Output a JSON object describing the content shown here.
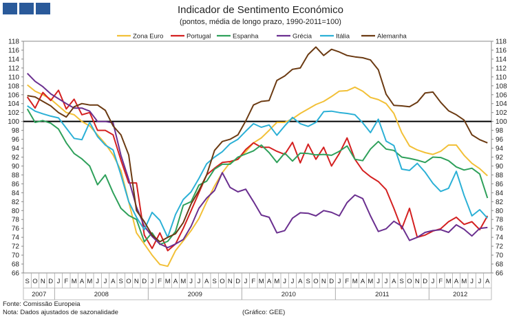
{
  "header": {
    "title": "Indicador de Sentimento Económico",
    "subtitle": "(pontos, média de longo prazo, 1990-2011=100)"
  },
  "footer": {
    "source": "Fonte: Comissão Europeia",
    "note": "Nota: Dados ajustados de sazonalidade",
    "credit": "(Gráfico: GEE)"
  },
  "chart_data": {
    "type": "line",
    "title": "Indicador de Sentimento Económico",
    "ylim": [
      66,
      118
    ],
    "ytick_step": 2,
    "reference_line": 100,
    "months": [
      "S",
      "O",
      "N",
      "D",
      "J",
      "F",
      "M",
      "A",
      "M",
      "J",
      "J",
      "A",
      "S",
      "O",
      "N",
      "D",
      "J",
      "F",
      "M",
      "A",
      "M",
      "J",
      "J",
      "A",
      "S",
      "O",
      "N",
      "D",
      "J",
      "F",
      "M",
      "A",
      "M",
      "J",
      "J",
      "A",
      "S",
      "O",
      "N",
      "D",
      "J",
      "F",
      "M",
      "A",
      "M",
      "J",
      "J",
      "A",
      "S",
      "O",
      "N",
      "D",
      "J",
      "F",
      "M",
      "A",
      "M",
      "J",
      "J",
      "A"
    ],
    "years": [
      {
        "label": "2007",
        "start": 0,
        "count": 4
      },
      {
        "label": "2008",
        "start": 4,
        "count": 12
      },
      {
        "label": "2009",
        "start": 16,
        "count": 12
      },
      {
        "label": "2010",
        "start": 28,
        "count": 12
      },
      {
        "label": "2011",
        "start": 40,
        "count": 12
      },
      {
        "label": "2012",
        "start": 52,
        "count": 8
      }
    ],
    "series": [
      {
        "name": "Zona Euro",
        "color": "#f2c037",
        "values": [
          108.2,
          106.8,
          106.0,
          105.0,
          103.5,
          102.0,
          101.5,
          100.0,
          99.0,
          97.0,
          95.0,
          92.5,
          89.0,
          82.0,
          75.0,
          72.5,
          70.0,
          67.9,
          67.5,
          71.0,
          73.2,
          75.5,
          78.2,
          82.0,
          85.5,
          88.5,
          90.8,
          91.5,
          93.2,
          95.2,
          96.3,
          98.0,
          99.8,
          99.8,
          100.6,
          101.8,
          102.8,
          103.8,
          104.5,
          105.6,
          106.8,
          106.9,
          107.7,
          106.8,
          105.4,
          104.9,
          104.0,
          101.8,
          97.5,
          94.5,
          93.6,
          93.0,
          92.6,
          93.3,
          94.7,
          94.7,
          92.4,
          90.6,
          89.4,
          87.8
        ]
      },
      {
        "name": "Portugal",
        "color": "#d42020",
        "values": [
          105.5,
          103.0,
          106.5,
          104.7,
          107.0,
          102.8,
          105.0,
          101.5,
          102.0,
          98.0,
          98.0,
          97.0,
          91.3,
          86.2,
          86.2,
          74.5,
          71.5,
          75.0,
          71.0,
          72.5,
          76.0,
          80.0,
          84.0,
          88.0,
          89.5,
          90.8,
          91.0,
          91.5,
          93.7,
          95.2,
          94.2,
          94.2,
          93.3,
          92.6,
          95.3,
          90.7,
          94.9,
          91.5,
          94.2,
          90.0,
          92.8,
          96.3,
          91.5,
          89.0,
          87.6,
          86.5,
          84.7,
          80.5,
          75.9,
          80.5,
          74.0,
          74.5,
          75.4,
          75.9,
          77.5,
          78.5,
          76.9,
          77.5,
          75.7,
          78.8
        ]
      },
      {
        "name": "Espanha",
        "color": "#2ea05a",
        "values": [
          102.8,
          99.8,
          100.2,
          99.6,
          98.3,
          95.2,
          92.8,
          91.6,
          90.0,
          85.8,
          88.0,
          84.0,
          80.5,
          78.9,
          78.0,
          73.0,
          75.0,
          72.4,
          73.1,
          75.3,
          81.2,
          82.0,
          85.7,
          86.6,
          89.3,
          90.4,
          90.4,
          92.0,
          92.7,
          93.4,
          94.7,
          93.0,
          90.8,
          92.9,
          91.1,
          92.9,
          92.8,
          92.5,
          92.6,
          92.4,
          93.3,
          94.5,
          91.5,
          91.2,
          93.8,
          95.5,
          93.8,
          93.5,
          92.0,
          91.7,
          91.3,
          90.8,
          92.0,
          91.9,
          91.2,
          89.8,
          89.1,
          89.5,
          88.2,
          82.8
        ]
      },
      {
        "name": "Grécia",
        "color": "#6a2f8f",
        "values": [
          110.8,
          109.0,
          107.8,
          106.2,
          105.1,
          104.0,
          103.0,
          103.0,
          102.3,
          100.0,
          100.0,
          99.7,
          92.4,
          87.0,
          80.8,
          76.5,
          74.2,
          72.5,
          71.7,
          72.5,
          73.5,
          76.5,
          80.5,
          82.8,
          84.5,
          88.5,
          85.2,
          84.2,
          84.8,
          82.0,
          79.0,
          78.5,
          75.0,
          75.5,
          78.3,
          79.5,
          79.4,
          78.8,
          80.0,
          79.6,
          78.8,
          81.8,
          83.5,
          82.7,
          78.8,
          75.3,
          75.9,
          77.6,
          76.5,
          73.3,
          74.0,
          75.1,
          75.5,
          75.7,
          75.1,
          76.8,
          75.8,
          74.3,
          76.0,
          76.2
        ]
      },
      {
        "name": "Itália",
        "color": "#2bb0d6",
        "values": [
          103.5,
          102.3,
          101.7,
          101.2,
          100.8,
          98.5,
          96.2,
          95.9,
          99.8,
          96.6,
          94.7,
          93.6,
          88.0,
          82.0,
          78.5,
          75.7,
          79.6,
          77.8,
          74.0,
          79.1,
          82.5,
          84.2,
          87.2,
          90.5,
          92.0,
          93.2,
          95.0,
          96.0,
          97.8,
          99.5,
          98.7,
          99.2,
          96.9,
          99.0,
          100.9,
          99.5,
          98.9,
          99.8,
          102.2,
          102.3,
          102.0,
          101.8,
          101.5,
          99.7,
          97.5,
          100.5,
          95.6,
          94.6,
          89.3,
          89.0,
          90.6,
          88.6,
          86.1,
          84.3,
          85.0,
          88.8,
          83.4,
          78.8,
          80.2,
          78.3
        ]
      },
      {
        "name": "Alemanha",
        "color": "#6b3a12",
        "values": [
          105.8,
          105.5,
          104.5,
          103.5,
          102.0,
          101.0,
          103.3,
          104.0,
          103.7,
          103.7,
          102.5,
          99.0,
          97.0,
          92.5,
          80.0,
          77.5,
          74.5,
          73.0,
          74.0,
          74.8,
          77.3,
          81.5,
          84.5,
          88.0,
          93.5,
          95.5,
          96.0,
          97.0,
          100.1,
          103.7,
          104.5,
          104.7,
          109.2,
          110.2,
          111.7,
          112.0,
          115.0,
          116.7,
          114.8,
          116.2,
          115.6,
          114.8,
          114.5,
          114.3,
          113.8,
          111.6,
          106.1,
          103.6,
          103.5,
          103.3,
          104.3,
          106.4,
          106.6,
          104.3,
          102.4,
          101.5,
          100.3,
          97.0,
          95.9,
          95.2
        ]
      }
    ]
  }
}
